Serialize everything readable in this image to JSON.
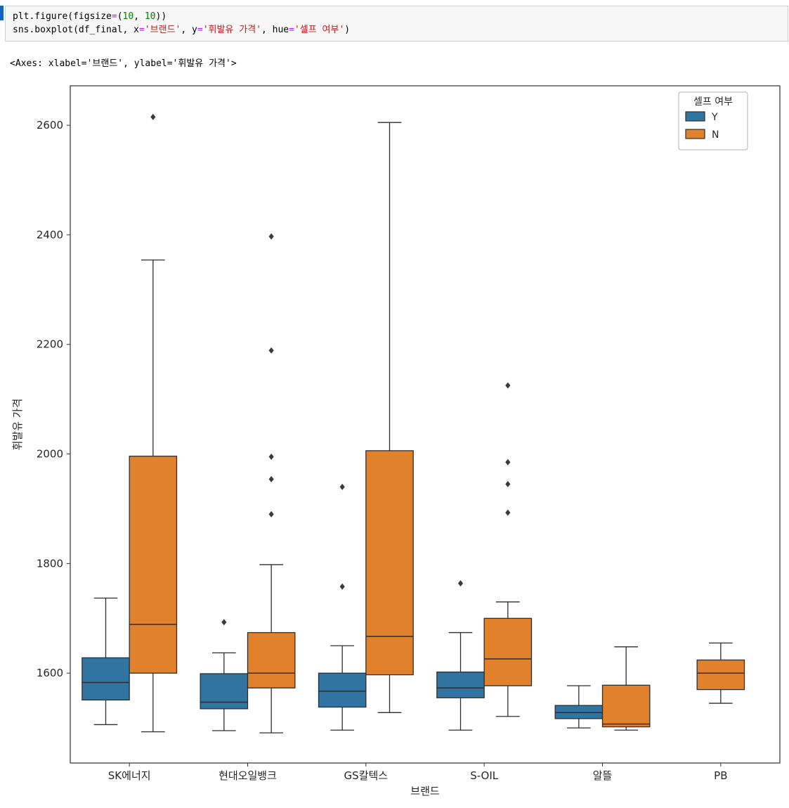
{
  "code_cell": {
    "token_colors": {
      "default": "#000000",
      "number": "#008000",
      "string": "#ba2121",
      "operator": "#aa22ff"
    },
    "lines": [
      {
        "tokens": [
          {
            "text": "plt.figure(figsize",
            "color": "default"
          },
          {
            "text": "=",
            "color": "operator"
          },
          {
            "text": "(",
            "color": "default"
          },
          {
            "text": "10",
            "color": "number"
          },
          {
            "text": ", ",
            "color": "default"
          },
          {
            "text": "10",
            "color": "number"
          },
          {
            "text": "))",
            "color": "default"
          }
        ]
      },
      {
        "tokens": [
          {
            "text": "sns.boxplot(df_final, x",
            "color": "default"
          },
          {
            "text": "=",
            "color": "operator"
          },
          {
            "text": "'브랜드'",
            "color": "string"
          },
          {
            "text": ", y",
            "color": "default"
          },
          {
            "text": "=",
            "color": "operator"
          },
          {
            "text": "'휘발유 가격'",
            "color": "string"
          },
          {
            "text": ", hue",
            "color": "default"
          },
          {
            "text": "=",
            "color": "operator"
          },
          {
            "text": "'셀프 여부'",
            "color": "string"
          },
          {
            "text": ")",
            "color": "default"
          }
        ]
      }
    ]
  },
  "output": {
    "repr": "<Axes: xlabel='브랜드', ylabel='휘발유 가격'>"
  },
  "chart_data": {
    "type": "boxplot",
    "title": "",
    "xlabel": "브랜드",
    "ylabel": "휘발유 가격",
    "categories": [
      "SK에너지",
      "현대오일뱅크",
      "GS칼텍스",
      "S-OIL",
      "알뜰",
      "PB"
    ],
    "ylim": [
      1436,
      2672
    ],
    "yticks": [
      1600,
      1800,
      2000,
      2200,
      2400,
      2600
    ],
    "grid": false,
    "legend": {
      "title": "셀프 여부",
      "position": "upper right",
      "entries": [
        {
          "label": "Y",
          "color": "#3274a1"
        },
        {
          "label": "N",
          "color": "#e1812c"
        }
      ]
    },
    "box_edge_color": "#2e2e2e",
    "outlier_color": "#3b3b3b",
    "series": [
      {
        "name": "Y",
        "color": "#3274a1",
        "boxes": [
          {
            "whislo": 1506,
            "q1": 1551,
            "med": 1583,
            "q3": 1628,
            "whishi": 1737,
            "outliers": []
          },
          {
            "whislo": 1495,
            "q1": 1535,
            "med": 1547,
            "q3": 1599,
            "whishi": 1637,
            "outliers": [
              1693
            ]
          },
          {
            "whislo": 1496,
            "q1": 1538,
            "med": 1567,
            "q3": 1600,
            "whishi": 1650,
            "outliers": [
              1758,
              1940
            ]
          },
          {
            "whislo": 1496,
            "q1": 1555,
            "med": 1573,
            "q3": 1602,
            "whishi": 1674,
            "outliers": [
              1764
            ]
          },
          {
            "whislo": 1500,
            "q1": 1517,
            "med": 1528,
            "q3": 1541,
            "whishi": 1577,
            "outliers": []
          },
          null
        ]
      },
      {
        "name": "N",
        "color": "#e1812c",
        "boxes": [
          {
            "whislo": 1493,
            "q1": 1600,
            "med": 1689,
            "q3": 1996,
            "whishi": 2354,
            "outliers": [
              2615
            ]
          },
          {
            "whislo": 1491,
            "q1": 1573,
            "med": 1600,
            "q3": 1674,
            "whishi": 1798,
            "outliers": [
              1890,
              1954,
              1995,
              2189,
              2397
            ]
          },
          {
            "whislo": 1528,
            "q1": 1597,
            "med": 1667,
            "q3": 2006,
            "whishi": 2605,
            "outliers": []
          },
          {
            "whislo": 1521,
            "q1": 1577,
            "med": 1626,
            "q3": 1700,
            "whishi": 1730,
            "outliers": [
              1893,
              1945,
              1985,
              2125
            ]
          },
          {
            "whislo": 1496,
            "q1": 1502,
            "med": 1507,
            "q3": 1578,
            "whishi": 1648,
            "outliers": []
          },
          {
            "whislo": 1545,
            "q1": 1570,
            "med": 1600,
            "q3": 1624,
            "whishi": 1655,
            "outliers": []
          }
        ]
      }
    ]
  }
}
